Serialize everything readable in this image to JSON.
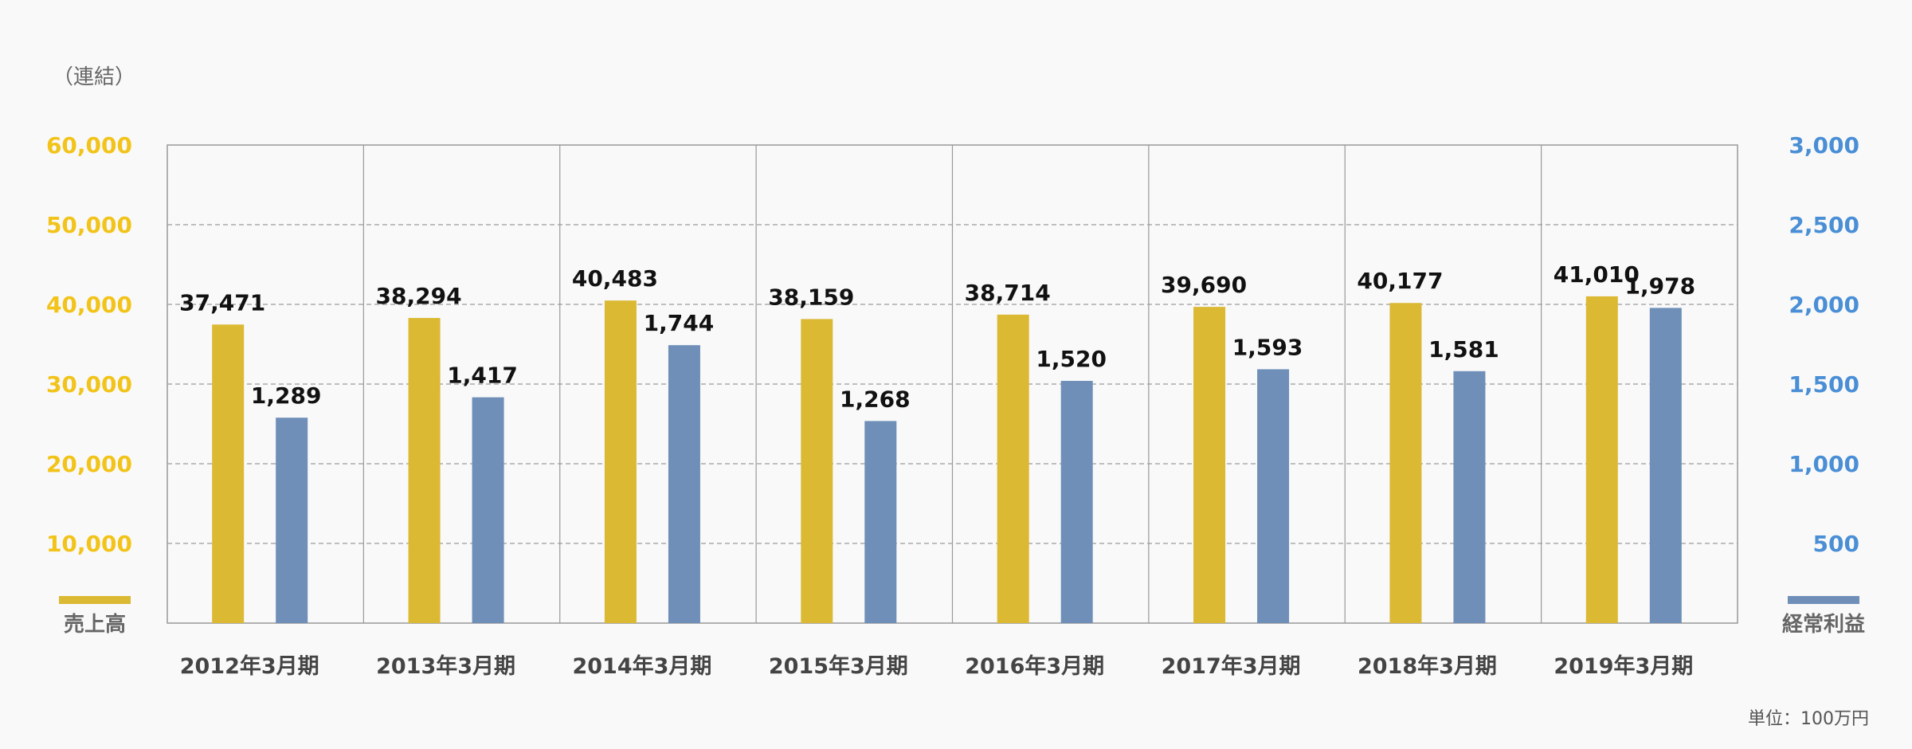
{
  "chart_data": {
    "type": "bar",
    "scope_label": "（連結）",
    "unit_label": "単位：100万円",
    "categories": [
      "2012年3月期",
      "2013年3月期",
      "2014年3月期",
      "2015年3月期",
      "2016年3月期",
      "2017年3月期",
      "2018年3月期",
      "2019年3月期"
    ],
    "series": [
      {
        "name": "売上高",
        "axis": "left",
        "color": "#dbb933",
        "values": [
          37471,
          38294,
          40483,
          38159,
          38714,
          39690,
          40177,
          41010
        ],
        "labels": [
          "37,471",
          "38,294",
          "40,483",
          "38,159",
          "38,714",
          "39,690",
          "40,177",
          "41,010"
        ]
      },
      {
        "name": "経常利益",
        "axis": "right",
        "color": "#6f8fb8",
        "values": [
          1289,
          1417,
          1744,
          1268,
          1520,
          1593,
          1581,
          1978
        ],
        "labels": [
          "1,289",
          "1,417",
          "1,744",
          "1,268",
          "1,520",
          "1,593",
          "1,581",
          "1,978"
        ]
      }
    ],
    "y_left": {
      "range": [
        0,
        60000
      ],
      "ticks": [
        10000,
        20000,
        30000,
        40000,
        50000,
        60000
      ],
      "tick_labels": [
        "10,000",
        "20,000",
        "30,000",
        "40,000",
        "50,000",
        "60,000"
      ],
      "color": "#f2c318"
    },
    "y_right": {
      "range": [
        0,
        3000
      ],
      "ticks": [
        500,
        1000,
        1500,
        2000,
        2500,
        3000
      ],
      "tick_labels": [
        "500",
        "1,000",
        "1,500",
        "2,000",
        "2,500",
        "3,000"
      ],
      "color": "#4a8fd6"
    },
    "grid": "dashed-horizontal",
    "legend": "bottom-corners"
  }
}
